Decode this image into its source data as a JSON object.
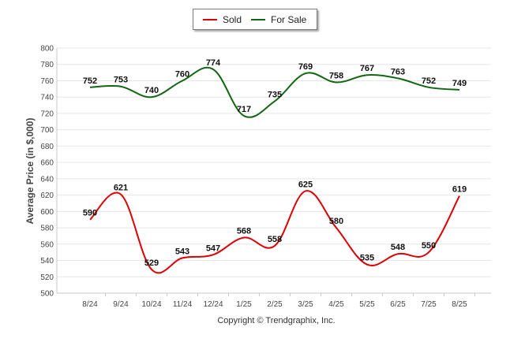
{
  "legend": {
    "sold_label": "Sold",
    "forsale_label": "For Sale"
  },
  "footer": {
    "copyright": "Copyright © Trendgraphix, Inc."
  },
  "colors": {
    "sold": "#dd0000",
    "for_sale": "#116611",
    "grid": "#e6e6e6"
  },
  "chart_data": {
    "type": "line",
    "title": "",
    "xlabel": "",
    "ylabel": "Average Price (in $,000)",
    "ylim": [
      500,
      800
    ],
    "yticks": [
      500,
      520,
      540,
      560,
      580,
      600,
      620,
      640,
      660,
      680,
      700,
      720,
      740,
      760,
      780,
      800
    ],
    "grid": true,
    "legend_position": "top-center",
    "smooth": true,
    "categories": [
      "8/24",
      "9/24",
      "10/24",
      "11/24",
      "12/24",
      "1/25",
      "2/25",
      "3/25",
      "4/25",
      "5/25",
      "6/25",
      "7/25",
      "8/25"
    ],
    "series": [
      {
        "name": "Sold",
        "color": "#dd0000",
        "values": [
          590,
          621,
          529,
          543,
          547,
          568,
          558,
          625,
          580,
          535,
          548,
          550,
          619
        ]
      },
      {
        "name": "For Sale",
        "color": "#116611",
        "values": [
          752,
          753,
          740,
          760,
          774,
          717,
          735,
          769,
          758,
          767,
          763,
          752,
          749
        ]
      }
    ]
  }
}
